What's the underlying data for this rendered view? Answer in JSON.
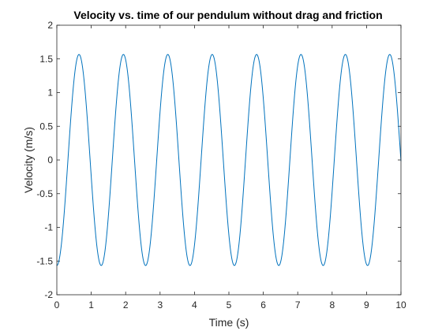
{
  "chart_data": {
    "type": "line",
    "title": "Velocity vs. time of our pendulum without drag and friction",
    "xlabel": "Time (s)",
    "ylabel": "Velocity (m/s)",
    "xlim": [
      0,
      10
    ],
    "ylim": [
      -2,
      2
    ],
    "xticks": [
      0,
      1,
      2,
      3,
      4,
      5,
      6,
      7,
      8,
      9,
      10
    ],
    "xtick_labels": [
      "0",
      "1",
      "2",
      "3",
      "4",
      "5",
      "6",
      "7",
      "8",
      "9",
      "10"
    ],
    "yticks": [
      -2,
      -1.5,
      -1,
      -0.5,
      0,
      0.5,
      1,
      1.5,
      2
    ],
    "ytick_labels": [
      "-2",
      "-1.5",
      "-1",
      "-0.5",
      "0",
      "0.5",
      "1",
      "1.5",
      "2"
    ],
    "grid": false,
    "box": true,
    "series": [
      {
        "color": "#0072BD",
        "model": "sine",
        "amplitude": 1.566,
        "period": 1.29,
        "phase_shift": 0.3225,
        "x_range": [
          0,
          10
        ],
        "peaks_x": [
          0.645,
          1.935,
          3.225,
          4.515,
          5.805,
          7.095,
          8.385,
          9.675
        ],
        "troughs_x": [
          1.29,
          2.58,
          3.87,
          5.16,
          6.45,
          7.74,
          9.03
        ]
      }
    ]
  },
  "colors": {
    "line": "#0072BD",
    "axes": "#262626",
    "background": "#ffffff"
  }
}
